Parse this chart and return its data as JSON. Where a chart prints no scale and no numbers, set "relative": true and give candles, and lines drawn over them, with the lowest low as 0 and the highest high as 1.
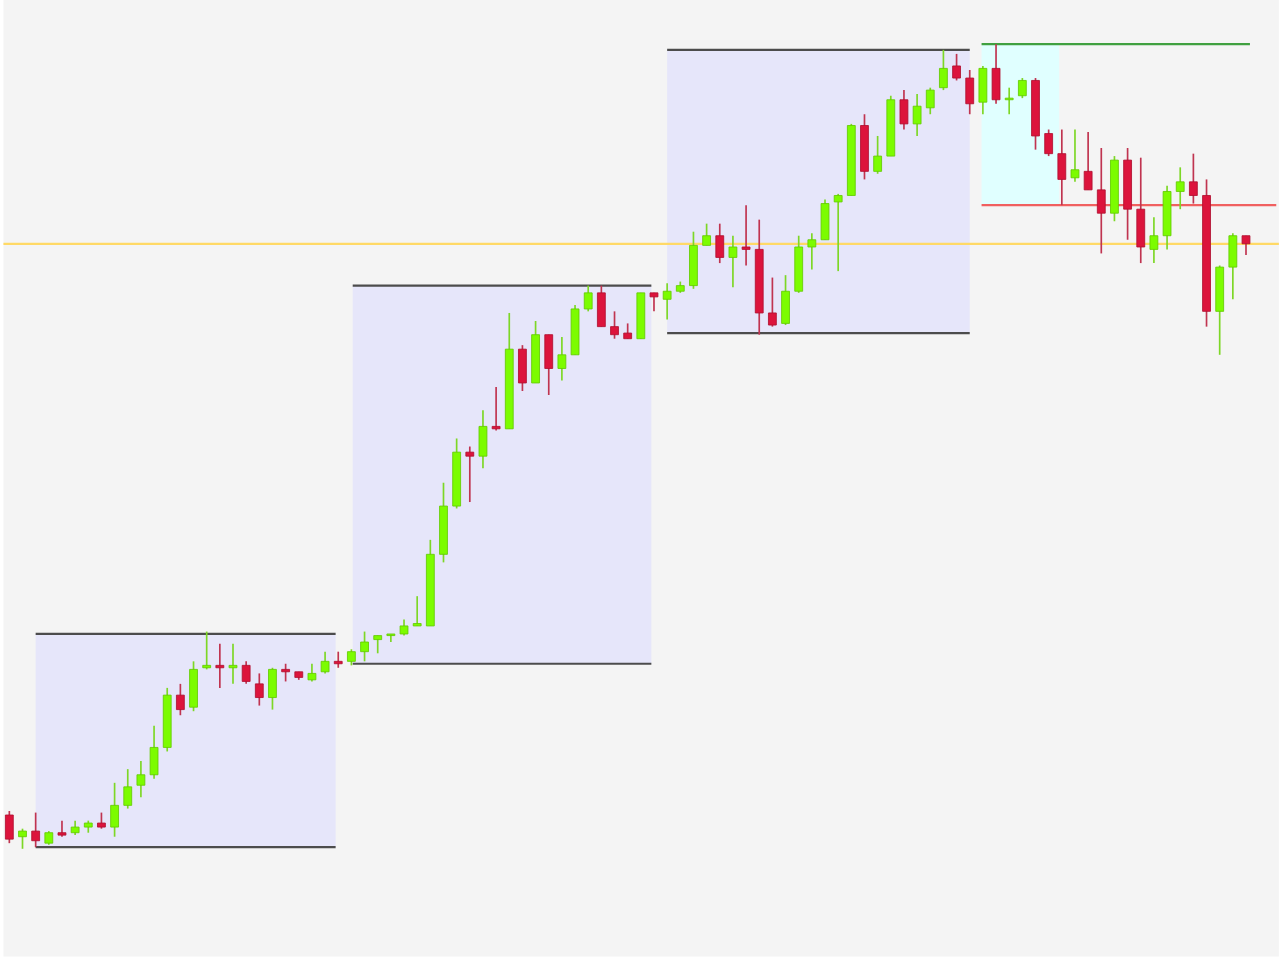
{
  "chart_data": {
    "type": "candlestick",
    "relative": true,
    "categories": [
      null,
      null,
      null,
      null,
      null,
      null,
      null,
      null,
      null,
      null,
      null,
      null,
      null,
      null,
      null,
      null,
      null,
      null,
      null,
      null,
      null,
      null,
      null,
      null,
      null,
      null,
      null,
      null,
      null,
      null,
      null,
      null,
      null,
      null,
      null,
      null,
      null,
      null,
      null,
      null,
      null,
      null,
      null,
      null,
      null,
      null,
      null,
      null,
      null,
      null,
      null,
      null,
      null,
      null,
      null,
      null,
      null,
      null,
      null,
      null,
      null,
      null,
      null,
      null,
      null,
      null,
      null,
      null,
      null,
      null,
      null,
      null,
      null,
      null,
      null,
      null,
      null,
      null,
      null,
      null,
      null,
      null,
      null,
      null,
      null,
      null,
      null,
      null,
      null,
      null,
      null,
      null,
      null,
      null,
      null
    ],
    "ohlc": [
      [
        0.042,
        0.047,
        0.007,
        0.012
      ],
      [
        0.015,
        0.025,
        0,
        0.022
      ],
      [
        0.022,
        0.045,
        0.002,
        0.01
      ],
      [
        0.007,
        0.022,
        0.005,
        0.02
      ],
      [
        0.02,
        0.035,
        0.015,
        0.017
      ],
      [
        0.02,
        0.035,
        0.017,
        0.027
      ],
      [
        0.027,
        0.035,
        0.02,
        0.032
      ],
      [
        0.032,
        0.045,
        0.025,
        0.027
      ],
      [
        0.027,
        0.082,
        0.015,
        0.054
      ],
      [
        0.054,
        0.099,
        0.05,
        0.077
      ],
      [
        0.079,
        0.109,
        0.064,
        0.092
      ],
      [
        0.092,
        0.153,
        0.087,
        0.126
      ],
      [
        0.126,
        0.2,
        0.121,
        0.191
      ],
      [
        0.191,
        0.205,
        0.166,
        0.173
      ],
      [
        0.176,
        0.233,
        0.171,
        0.223
      ],
      [
        0.225,
        0.27,
        0.223,
        0.228
      ],
      [
        0.228,
        0.255,
        0.2,
        0.225
      ],
      [
        0.225,
        0.255,
        0.205,
        0.228
      ],
      [
        0.228,
        0.233,
        0.205,
        0.208
      ],
      [
        0.205,
        0.218,
        0.178,
        0.188
      ],
      [
        0.188,
        0.225,
        0.173,
        0.223
      ],
      [
        0.223,
        0.23,
        0.208,
        0.22
      ],
      [
        0.22,
        0.22,
        0.21,
        0.213
      ],
      [
        0.21,
        0.23,
        0.208,
        0.218
      ],
      [
        0.22,
        0.245,
        0.218,
        0.233
      ],
      [
        0.233,
        0.245,
        0.225,
        0.23
      ],
      [
        0.233,
        0.248,
        0.228,
        0.245
      ],
      [
        0.245,
        0.27,
        0.233,
        0.257
      ],
      [
        0.26,
        0.265,
        0.243,
        0.265
      ],
      [
        0.265,
        0.267,
        0.257,
        0.267
      ],
      [
        0.267,
        0.285,
        0.265,
        0.277
      ],
      [
        0.277,
        0.314,
        0.277,
        0.28
      ],
      [
        0.277,
        0.384,
        0.277,
        0.366
      ],
      [
        0.366,
        0.455,
        0.356,
        0.426
      ],
      [
        0.426,
        0.51,
        0.423,
        0.493
      ],
      [
        0.493,
        0.5,
        0.431,
        0.488
      ],
      [
        0.488,
        0.545,
        0.473,
        0.525
      ],
      [
        0.525,
        0.574,
        0.52,
        0.522
      ],
      [
        0.522,
        0.666,
        0.522,
        0.621
      ],
      [
        0.621,
        0.626,
        0.569,
        0.579
      ],
      [
        0.579,
        0.656,
        0.579,
        0.639
      ],
      [
        0.639,
        0.639,
        0.564,
        0.597
      ],
      [
        0.597,
        0.636,
        0.582,
        0.614
      ],
      [
        0.614,
        0.676,
        0.614,
        0.671
      ],
      [
        0.671,
        0.7,
        0.668,
        0.691
      ],
      [
        0.691,
        0.7,
        0.649,
        0.649
      ],
      [
        0.649,
        0.668,
        0.634,
        0.639
      ],
      [
        0.641,
        0.653,
        0.634,
        0.634
      ],
      [
        0.634,
        0.691,
        0.634,
        0.691
      ],
      [
        0.691,
        0.691,
        0.668,
        0.686
      ],
      [
        0.683,
        0.703,
        0.658,
        0.693
      ],
      [
        0.693,
        0.705,
        0.691,
        0.7
      ],
      [
        0.7,
        0.767,
        0.696,
        0.75
      ],
      [
        0.75,
        0.777,
        0.75,
        0.762
      ],
      [
        0.762,
        0.777,
        0.728,
        0.735
      ],
      [
        0.735,
        0.762,
        0.698,
        0.748
      ],
      [
        0.748,
        0.8,
        0.725,
        0.745
      ],
      [
        0.745,
        0.782,
        0.639,
        0.666
      ],
      [
        0.666,
        0.71,
        0.649,
        0.651
      ],
      [
        0.653,
        0.713,
        0.651,
        0.693
      ],
      [
        0.693,
        0.762,
        0.691,
        0.748
      ],
      [
        0.748,
        0.765,
        0.72,
        0.757
      ],
      [
        0.757,
        0.807,
        0.757,
        0.802
      ],
      [
        0.804,
        0.814,
        0.718,
        0.812
      ],
      [
        0.812,
        0.901,
        0.812,
        0.899
      ],
      [
        0.899,
        0.913,
        0.832,
        0.842
      ],
      [
        0.842,
        0.886,
        0.839,
        0.861
      ],
      [
        0.861,
        0.936,
        0.861,
        0.931
      ],
      [
        0.931,
        0.943,
        0.894,
        0.901
      ],
      [
        0.901,
        0.938,
        0.886,
        0.923
      ],
      [
        0.921,
        0.946,
        0.913,
        0.943
      ],
      [
        0.946,
        0.993,
        0.943,
        0.97
      ],
      [
        0.973,
        0.988,
        0.955,
        0.958
      ],
      [
        0.958,
        0.968,
        0.913,
        0.926
      ],
      [
        0.928,
        0.973,
        0.913,
        0.97
      ],
      [
        0.97,
        1,
        0.926,
        0.931
      ],
      [
        0.931,
        0.946,
        0.913,
        0.933
      ],
      [
        0.936,
        0.958,
        0.933,
        0.955
      ],
      [
        0.955,
        0.958,
        0.869,
        0.886
      ],
      [
        0.889,
        0.894,
        0.861,
        0.864
      ],
      [
        0.864,
        0.894,
        0.8,
        0.832
      ],
      [
        0.834,
        0.894,
        0.829,
        0.844
      ],
      [
        0.842,
        0.891,
        0.819,
        0.819
      ],
      [
        0.819,
        0.871,
        0.74,
        0.79
      ],
      [
        0.79,
        0.861,
        0.78,
        0.856
      ],
      [
        0.856,
        0.871,
        0.757,
        0.795
      ],
      [
        0.795,
        0.859,
        0.728,
        0.748
      ],
      [
        0.745,
        0.785,
        0.728,
        0.762
      ],
      [
        0.762,
        0.824,
        0.745,
        0.817
      ],
      [
        0.817,
        0.847,
        0.795,
        0.829
      ],
      [
        0.829,
        0.864,
        0.802,
        0.812
      ],
      [
        0.812,
        0.832,
        0.649,
        0.668
      ],
      [
        0.668,
        0.725,
        0.614,
        0.723
      ],
      [
        0.723,
        0.765,
        0.683,
        0.762
      ],
      [
        0.762,
        0.762,
        0.738,
        0.752
      ]
    ],
    "colors": [
      "#dc143c",
      "#7cfc00",
      "#dc143c",
      "#7cfc00",
      "#dc143c",
      "#7cfc00",
      "#7cfc00",
      "#dc143c",
      "#7cfc00",
      "#7cfc00",
      "#7cfc00",
      "#7cfc00",
      "#7cfc00",
      "#dc143c",
      "#7cfc00",
      "#7cfc00",
      "#dc143c",
      "#7cfc00",
      "#dc143c",
      "#dc143c",
      "#7cfc00",
      "#dc143c",
      "#dc143c",
      "#7cfc00",
      "#7cfc00",
      "#dc143c",
      "#7cfc00",
      "#7cfc00",
      "#7cfc00",
      "#7cfc00",
      "#7cfc00",
      "#7cfc00",
      "#7cfc00",
      "#7cfc00",
      "#7cfc00",
      "#dc143c",
      "#7cfc00",
      "#dc143c",
      "#7cfc00",
      "#dc143c",
      "#7cfc00",
      "#dc143c",
      "#7cfc00",
      "#7cfc00",
      "#7cfc00",
      "#dc143c",
      "#dc143c",
      "#dc143c",
      "#7cfc00",
      "#dc143c",
      "#7cfc00",
      "#7cfc00",
      "#7cfc00",
      "#7cfc00",
      "#dc143c",
      "#7cfc00",
      "#dc143c",
      "#dc143c",
      "#dc143c",
      "#7cfc00",
      "#7cfc00",
      "#7cfc00",
      "#7cfc00",
      "#7cfc00",
      "#7cfc00",
      "#dc143c",
      "#7cfc00",
      "#7cfc00",
      "#dc143c",
      "#7cfc00",
      "#7cfc00",
      "#7cfc00",
      "#dc143c",
      "#dc143c",
      "#7cfc00",
      "#dc143c",
      "#7cfc00",
      "#7cfc00",
      "#dc143c",
      "#dc143c",
      "#dc143c",
      "#7cfc00",
      "#dc143c",
      "#dc143c",
      "#7cfc00",
      "#dc143c",
      "#dc143c",
      "#7cfc00",
      "#7cfc00",
      "#7cfc00",
      "#dc143c",
      "#dc143c",
      "#7cfc00",
      "#7cfc00",
      "#dc143c"
    ],
    "bands": [
      {
        "axis": "y",
        "from": 0.002,
        "to": 0.267,
        "color": "#e6e6fa"
      },
      {
        "axis": "y",
        "from": 0.23,
        "to": 0.7,
        "color": "#e6e6fa"
      },
      {
        "axis": "y",
        "from": 0.641,
        "to": 0.993,
        "color": "#e6e6fa"
      },
      {
        "axis": "y",
        "from": 0.8,
        "to": 1,
        "color": "#e0ffff"
      }
    ],
    "ref_lines": [
      {
        "axis": "y",
        "value": 0.752,
        "color": "#ffd966"
      },
      {
        "axis": "y",
        "value": 0.8,
        "color": "#f06060"
      },
      {
        "axis": "y",
        "value": 1,
        "color": "#40a040"
      },
      {
        "axis": "y",
        "value": 0.002,
        "color": "#4c4c4c"
      },
      {
        "axis": "y",
        "value": 0.267,
        "color": "#4c4c4c"
      },
      {
        "axis": "y",
        "value": 0.23,
        "color": "#4c4c4c"
      },
      {
        "axis": "y",
        "value": 0.7,
        "color": "#4c4c4c"
      },
      {
        "axis": "y",
        "value": 0.641,
        "color": "#4c4c4c"
      },
      {
        "axis": "y",
        "value": 0.993,
        "color": "#4c4c4c"
      }
    ]
  }
}
